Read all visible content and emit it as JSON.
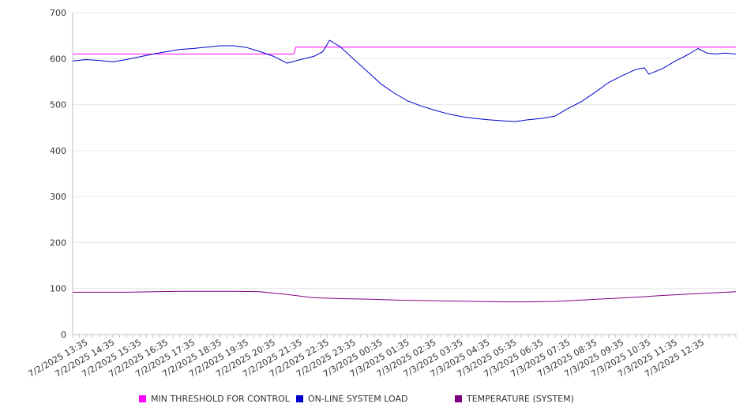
{
  "chart_data": {
    "type": "line",
    "y_range": [
      0,
      700
    ],
    "y_ticks": [
      "0",
      "100",
      "200",
      "300",
      "400",
      "500",
      "600",
      "700"
    ],
    "y_tick_values": [
      0,
      100,
      200,
      300,
      400,
      500,
      600,
      700
    ],
    "x_range": [
      "7/2/2025 13:00",
      "7/3/2025 13:45"
    ],
    "x_ticks": [
      "7/2/2025 13:35",
      "7/2/2025 14:35",
      "7/2/2025 15:35",
      "7/2/2025 16:35",
      "7/2/2025 17:35",
      "7/2/2025 18:35",
      "7/2/2025 19:35",
      "7/2/2025 20:35",
      "7/2/2025 21:35",
      "7/2/2025 22:35",
      "7/2/2025 23:35",
      "7/3/2025 00:35",
      "7/3/2025 01:35",
      "7/3/2025 02:35",
      "7/3/2025 03:35",
      "7/3/2025 04:35",
      "7/3/2025 05:35",
      "7/3/2025 06:35",
      "7/3/2025 07:35",
      "7/3/2025 08:35",
      "7/3/2025 09:35",
      "7/3/2025 10:35",
      "7/3/2025 11:35",
      "7/3/2025 12:35"
    ],
    "grid": true,
    "legend_position": "bottom",
    "series": [
      {
        "name": "MIN THRESHOLD FOR CONTROL",
        "color": "#ff00ff",
        "points": [
          [
            "7/2/2025 13:00",
            610
          ],
          [
            "7/2/2025 21:15",
            610
          ],
          [
            "7/2/2025 21:20",
            625
          ],
          [
            "7/3/2025 13:45",
            625
          ]
        ]
      },
      {
        "name": "ON-LINE SYSTEM LOAD",
        "color": "#0000cc",
        "points": [
          [
            "7/2/2025 13:00",
            595
          ],
          [
            "7/2/2025 13:30",
            598
          ],
          [
            "7/2/2025 14:00",
            596
          ],
          [
            "7/2/2025 14:30",
            593
          ],
          [
            "7/2/2025 15:00",
            598
          ],
          [
            "7/2/2025 15:30",
            604
          ],
          [
            "7/2/2025 16:00",
            610
          ],
          [
            "7/2/2025 16:30",
            615
          ],
          [
            "7/2/2025 17:00",
            620
          ],
          [
            "7/2/2025 17:30",
            622
          ],
          [
            "7/2/2025 18:00",
            625
          ],
          [
            "7/2/2025 18:30",
            628
          ],
          [
            "7/2/2025 19:00",
            628
          ],
          [
            "7/2/2025 19:30",
            624
          ],
          [
            "7/2/2025 20:00",
            615
          ],
          [
            "7/2/2025 20:30",
            605
          ],
          [
            "7/2/2025 21:00",
            590
          ],
          [
            "7/2/2025 21:30",
            598
          ],
          [
            "7/2/2025 22:00",
            605
          ],
          [
            "7/2/2025 22:20",
            615
          ],
          [
            "7/2/2025 22:35",
            640
          ],
          [
            "7/2/2025 23:00",
            625
          ],
          [
            "7/2/2025 23:30",
            598
          ],
          [
            "7/3/2025 00:00",
            572
          ],
          [
            "7/3/2025 00:30",
            545
          ],
          [
            "7/3/2025 01:00",
            525
          ],
          [
            "7/3/2025 01:30",
            508
          ],
          [
            "7/3/2025 02:00",
            497
          ],
          [
            "7/3/2025 02:30",
            488
          ],
          [
            "7/3/2025 03:00",
            480
          ],
          [
            "7/3/2025 03:30",
            474
          ],
          [
            "7/3/2025 04:00",
            470
          ],
          [
            "7/3/2025 04:30",
            467
          ],
          [
            "7/3/2025 05:00",
            465
          ],
          [
            "7/3/2025 05:30",
            463
          ],
          [
            "7/3/2025 06:00",
            467
          ],
          [
            "7/3/2025 06:30",
            470
          ],
          [
            "7/3/2025 07:00",
            475
          ],
          [
            "7/3/2025 07:30",
            492
          ],
          [
            "7/3/2025 08:00",
            507
          ],
          [
            "7/3/2025 08:30",
            527
          ],
          [
            "7/3/2025 09:00",
            548
          ],
          [
            "7/3/2025 09:30",
            563
          ],
          [
            "7/3/2025 10:00",
            576
          ],
          [
            "7/3/2025 10:20",
            580
          ],
          [
            "7/3/2025 10:30",
            566
          ],
          [
            "7/3/2025 11:00",
            578
          ],
          [
            "7/3/2025 11:30",
            595
          ],
          [
            "7/3/2025 12:00",
            610
          ],
          [
            "7/3/2025 12:20",
            622
          ],
          [
            "7/3/2025 12:40",
            612
          ],
          [
            "7/3/2025 13:00",
            610
          ],
          [
            "7/3/2025 13:20",
            612
          ],
          [
            "7/3/2025 13:45",
            610
          ]
        ]
      },
      {
        "name": "TEMPERATURE (SYSTEM)",
        "color": "#800080",
        "points": [
          [
            "7/2/2025 13:00",
            92
          ],
          [
            "7/2/2025 15:00",
            92
          ],
          [
            "7/2/2025 17:00",
            94
          ],
          [
            "7/2/2025 19:00",
            94
          ],
          [
            "7/2/2025 20:00",
            93
          ],
          [
            "7/2/2025 21:00",
            87
          ],
          [
            "7/2/2025 22:00",
            80
          ],
          [
            "7/2/2025 23:00",
            78
          ],
          [
            "7/3/2025 00:00",
            77
          ],
          [
            "7/3/2025 01:00",
            75
          ],
          [
            "7/3/2025 02:00",
            74
          ],
          [
            "7/3/2025 03:00",
            73
          ],
          [
            "7/3/2025 04:00",
            72
          ],
          [
            "7/3/2025 05:00",
            71
          ],
          [
            "7/3/2025 06:00",
            71
          ],
          [
            "7/3/2025 07:00",
            72
          ],
          [
            "7/3/2025 08:00",
            75
          ],
          [
            "7/3/2025 09:00",
            78
          ],
          [
            "7/3/2025 10:00",
            81
          ],
          [
            "7/3/2025 11:00",
            85
          ],
          [
            "7/3/2025 12:00",
            88
          ],
          [
            "7/3/2025 13:00",
            91
          ],
          [
            "7/3/2025 13:45",
            93
          ]
        ]
      }
    ]
  }
}
